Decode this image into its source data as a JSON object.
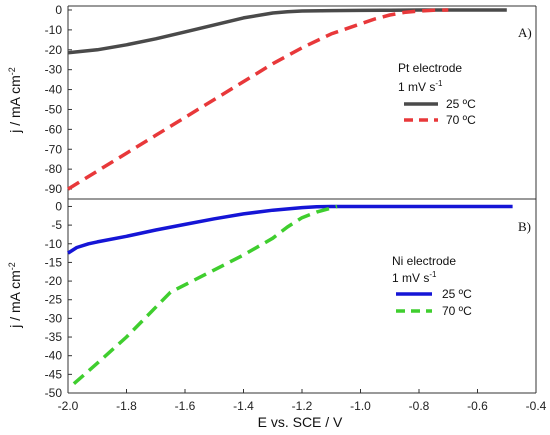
{
  "chart_data": [
    {
      "type": "line",
      "panel_label": "A)",
      "xlabel": "E vs. SCE / V",
      "ylabel": "j / mA cm",
      "ylabel_sup": "-2",
      "xlim": [
        -2.0,
        -0.4
      ],
      "ylim": [
        -95,
        2
      ],
      "yticks": [
        0,
        -10,
        -20,
        -30,
        -40,
        -50,
        -60,
        -70,
        -80,
        -90
      ],
      "legend": {
        "title": "Pt electrode",
        "rate": "1 mV s",
        "rate_sup": "-1",
        "placement": "right"
      },
      "series": [
        {
          "name": "25 ºC",
          "color": "#4a4a4a",
          "dash": "solid",
          "x": [
            -2.0,
            -1.9,
            -1.8,
            -1.7,
            -1.6,
            -1.5,
            -1.4,
            -1.3,
            -1.25,
            -1.2,
            -1.1,
            -1.0,
            -0.9,
            -0.8,
            -0.7,
            -0.6,
            -0.5
          ],
          "y": [
            -21.5,
            -20,
            -17.5,
            -14.5,
            -11,
            -7.5,
            -4,
            -1.5,
            -0.9,
            -0.5,
            -0.3,
            -0.2,
            -0.1,
            0,
            0,
            0,
            0
          ]
        },
        {
          "name": "70 ºC",
          "color": "#e8383a",
          "dash": "dashed",
          "x": [
            -2.0,
            -1.9,
            -1.8,
            -1.7,
            -1.6,
            -1.5,
            -1.4,
            -1.3,
            -1.2,
            -1.1,
            -1.0,
            -0.95,
            -0.9,
            -0.85,
            -0.8,
            -0.75,
            -0.7
          ],
          "y": [
            -90,
            -81,
            -72,
            -63,
            -54,
            -45,
            -36,
            -27,
            -19,
            -12,
            -7,
            -4.5,
            -2.5,
            -1.2,
            -0.5,
            -0.1,
            0
          ]
        }
      ]
    },
    {
      "type": "line",
      "panel_label": "B)",
      "xlabel": "E vs. SCE / V",
      "ylabel": "j / mA cm",
      "ylabel_sup": "-2",
      "xlim": [
        -2.0,
        -0.4
      ],
      "ylim": [
        -50,
        2
      ],
      "xticks": [
        -2.0,
        -1.8,
        -1.6,
        -1.4,
        -1.2,
        -1.0,
        -0.8,
        -0.6,
        -0.4
      ],
      "xtick_labels": [
        "-2.0",
        "-1.8",
        "-1.6",
        "-1.4",
        "-1.2",
        "-1.0",
        "-0.8",
        "-0.6",
        "-0.4"
      ],
      "yticks": [
        0,
        -5,
        -10,
        -15,
        -20,
        -25,
        -30,
        -35,
        -40,
        -45,
        -50
      ],
      "legend": {
        "title": "Ni electrode",
        "rate": "1 mV s",
        "rate_sup": "-1",
        "placement": "right"
      },
      "series": [
        {
          "name": "25 ºC",
          "color": "#1515d6",
          "dash": "solid",
          "x": [
            -2.0,
            -1.97,
            -1.93,
            -1.9,
            -1.8,
            -1.7,
            -1.6,
            -1.5,
            -1.4,
            -1.3,
            -1.2,
            -1.15,
            -1.1,
            -1.05,
            -1.0,
            -0.8,
            -0.6,
            -0.48
          ],
          "y": [
            -12.5,
            -11,
            -10,
            -9.5,
            -8,
            -6.3,
            -4.8,
            -3.3,
            -2,
            -1,
            -0.3,
            -0.1,
            0,
            0,
            0,
            0,
            0,
            0
          ]
        },
        {
          "name": "70 ºC",
          "color": "#3fce2e",
          "dash": "dashed",
          "x": [
            -1.98,
            -1.9,
            -1.8,
            -1.7,
            -1.65,
            -1.6,
            -1.5,
            -1.4,
            -1.3,
            -1.25,
            -1.2,
            -1.15,
            -1.1,
            -1.08
          ],
          "y": [
            -47.5,
            -42,
            -35,
            -27,
            -23,
            -21,
            -17,
            -13,
            -8.5,
            -5.5,
            -3,
            -1.5,
            -0.4,
            0
          ]
        }
      ]
    }
  ]
}
